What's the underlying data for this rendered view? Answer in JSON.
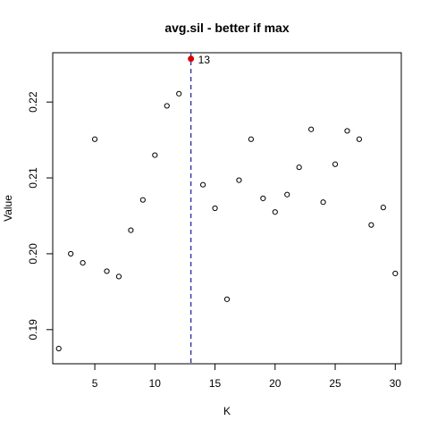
{
  "chart_data": {
    "type": "scatter",
    "title": "avg.sil - better if  max",
    "xlabel": "K",
    "ylabel": "Value",
    "xlim": [
      1.5,
      30.5
    ],
    "ylim": [
      0.1855,
      0.2265
    ],
    "x_ticks": [
      5,
      10,
      15,
      20,
      25,
      30
    ],
    "x_tick_labels": [
      "5",
      "10",
      "15",
      "20",
      "25",
      "30"
    ],
    "y_ticks": [
      0.19,
      0.2,
      0.21,
      0.22
    ],
    "y_tick_labels": [
      "0.19",
      "0.20",
      "0.21",
      "0.22"
    ],
    "grid": false,
    "legend": "none",
    "points": [
      {
        "x": 2,
        "y": 0.1875
      },
      {
        "x": 3,
        "y": 0.2
      },
      {
        "x": 4,
        "y": 0.1988
      },
      {
        "x": 5,
        "y": 0.2151
      },
      {
        "x": 6,
        "y": 0.1977
      },
      {
        "x": 7,
        "y": 0.197
      },
      {
        "x": 8,
        "y": 0.2031
      },
      {
        "x": 9,
        "y": 0.2071
      },
      {
        "x": 10,
        "y": 0.213
      },
      {
        "x": 11,
        "y": 0.2195
      },
      {
        "x": 12,
        "y": 0.2211
      },
      {
        "x": 14,
        "y": 0.2091
      },
      {
        "x": 15,
        "y": 0.206
      },
      {
        "x": 16,
        "y": 0.194
      },
      {
        "x": 17,
        "y": 0.2097
      },
      {
        "x": 18,
        "y": 0.2151
      },
      {
        "x": 19,
        "y": 0.2073
      },
      {
        "x": 20,
        "y": 0.2055
      },
      {
        "x": 21,
        "y": 0.2078
      },
      {
        "x": 22,
        "y": 0.2114
      },
      {
        "x": 23,
        "y": 0.2164
      },
      {
        "x": 24,
        "y": 0.2068
      },
      {
        "x": 25,
        "y": 0.2118
      },
      {
        "x": 26,
        "y": 0.2162
      },
      {
        "x": 27,
        "y": 0.2151
      },
      {
        "x": 28,
        "y": 0.2038
      },
      {
        "x": 29,
        "y": 0.2061
      },
      {
        "x": 30,
        "y": 0.1974
      }
    ],
    "highlight": {
      "x": 13,
      "y": 0.2257,
      "label": "13",
      "color": "#dd0000"
    },
    "vline": {
      "x": 13,
      "color": "#1a1a99",
      "style": "dashed"
    },
    "point_color": "#000000"
  }
}
